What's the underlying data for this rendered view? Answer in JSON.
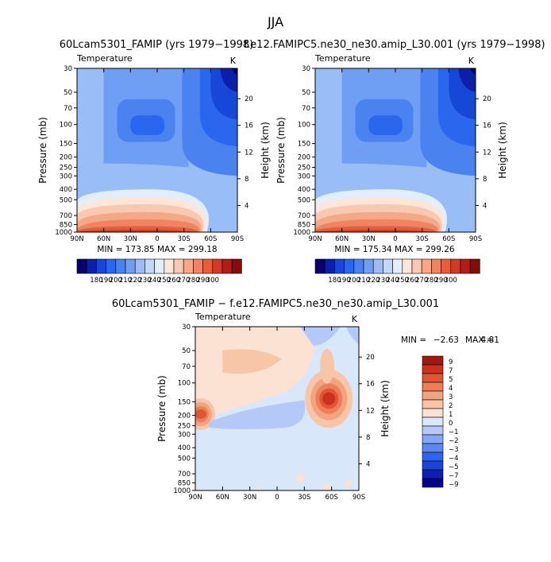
{
  "figure": {
    "title": "JJA"
  },
  "top_left": {
    "title": "60Lcam5301_FAMIP (yrs 1979−1998)",
    "var": "Temperature",
    "units": "K",
    "stats": "MIN = 173.85   MAX = 299.18"
  },
  "top_right": {
    "title": "f.e12.FAMIPC5.ne30_ne30.amip_L30.001 (yrs 1979−1998)",
    "var": "Temperature",
    "units": "K",
    "stats": "MIN = 175.34   MAX = 299.26"
  },
  "bottom": {
    "title": "60Lcam5301_FAMIP − f.e12.FAMIPC5.ne30_ne30.amip_L30.001",
    "var": "Temperature",
    "units": "K",
    "stats_min_label": "MIN =",
    "stats_min": "−2.63",
    "stats_max_label": "MAX =",
    "stats_max": "4.81"
  },
  "axes": {
    "ylabel_left": "Pressure (mb)",
    "ylabel_right": "Height (km)"
  },
  "colors": {
    "temp_levels": [
      "#08006b",
      "#0b1fa8",
      "#1747d6",
      "#2b66ee",
      "#4a82f0",
      "#6e9ff4",
      "#98bdf7",
      "#c2d8f9",
      "#e2eefc",
      "#fbe6d8",
      "#f8c9b0",
      "#f4a886",
      "#ef8460",
      "#e55d3d",
      "#d13a24",
      "#b31d13",
      "#8a0a08"
    ],
    "diff_levels": [
      "#05028a",
      "#0a20b4",
      "#1a45d8",
      "#3265ec",
      "#5a87f2",
      "#86a7f4",
      "#b4c9f7",
      "#d8e8fa",
      "#fbe2d2",
      "#f7c5a8",
      "#f2a47f",
      "#ec7e59",
      "#e05535",
      "#c8321f",
      "#a6180f"
    ]
  },
  "chart_data": [
    {
      "type": "heatmap",
      "name": "top_left",
      "x_ticks": [
        "90N",
        "60N",
        "30N",
        "0",
        "30S",
        "60S",
        "90S"
      ],
      "x_range": [
        90,
        -90
      ],
      "y_ticks": [
        30,
        50,
        70,
        100,
        150,
        200,
        250,
        300,
        400,
        500,
        700,
        850,
        1000
      ],
      "y_range_mb": [
        30,
        1000
      ],
      "y_scale": "log",
      "right_ticks_km": [
        4,
        8,
        12,
        16,
        20
      ],
      "colorbar_labels": [
        "180",
        "190",
        "200",
        "210",
        "220",
        "230",
        "240",
        "250",
        "260",
        "270",
        "280",
        "290",
        "300"
      ],
      "min": 173.85,
      "max": 299.18
    },
    {
      "type": "heatmap",
      "name": "top_right",
      "x_ticks": [
        "90N",
        "60N",
        "30N",
        "0",
        "30S",
        "60S",
        "90S"
      ],
      "x_range": [
        90,
        -90
      ],
      "y_ticks": [
        30,
        50,
        70,
        100,
        150,
        200,
        250,
        300,
        400,
        500,
        700,
        850,
        1000
      ],
      "y_range_mb": [
        30,
        1000
      ],
      "y_scale": "log",
      "right_ticks_km": [
        4,
        8,
        12,
        16,
        20
      ],
      "colorbar_labels": [
        "180",
        "190",
        "200",
        "210",
        "220",
        "230",
        "240",
        "250",
        "260",
        "270",
        "280",
        "290",
        "300"
      ],
      "min": 175.34,
      "max": 299.26
    },
    {
      "type": "heatmap",
      "name": "difference",
      "x_ticks": [
        "90N",
        "60N",
        "30N",
        "0",
        "30S",
        "60S",
        "90S"
      ],
      "x_range": [
        90,
        -90
      ],
      "y_ticks": [
        30,
        50,
        70,
        100,
        150,
        200,
        250,
        300,
        400,
        500,
        700,
        850,
        1000
      ],
      "y_range_mb": [
        30,
        1000
      ],
      "y_scale": "log",
      "right_ticks_km": [
        4,
        8,
        12,
        16,
        20
      ],
      "colorbar_labels": [
        "9",
        "7",
        "5",
        "4",
        "3",
        "2",
        "1",
        "0",
        "−1",
        "−2",
        "−3",
        "−4",
        "−5",
        "−7",
        "−9"
      ],
      "min": -2.63,
      "max": 4.81
    }
  ]
}
